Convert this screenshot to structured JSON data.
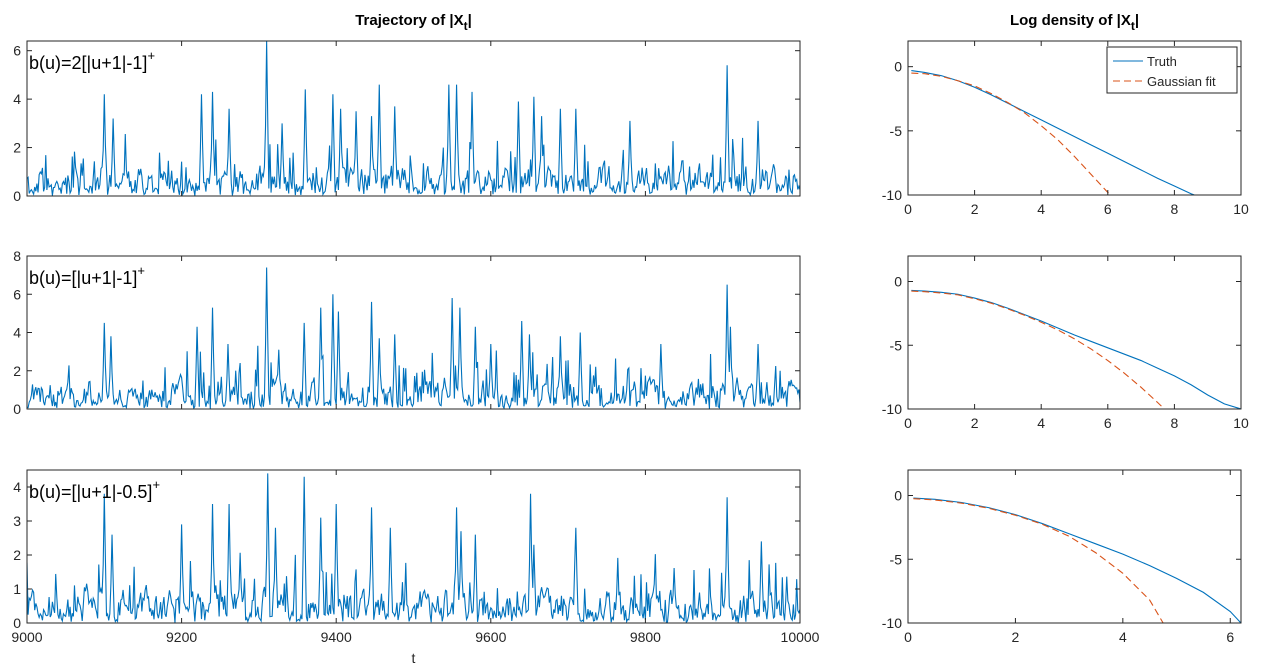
{
  "colors": {
    "truth": "#0072BD",
    "gaussian": "#D95319",
    "axis": "#262626"
  },
  "chart_data": [
    {
      "type": "line",
      "id": "traj1",
      "title": "Trajectory of |X",
      "title_sub": "t",
      "title_end": "|",
      "annotation": "b(u)=2[|u+1|-1]",
      "annotation_sup": "+",
      "xlim": [
        9000,
        10000
      ],
      "ylim": [
        0,
        6.4
      ],
      "xticks": [
        9000,
        9200,
        9400,
        9600,
        9800,
        10000
      ],
      "yticks": [
        0,
        2,
        4,
        6
      ],
      "show_xticklabels": false,
      "xlabel": "",
      "series": [
        {
          "style": "solid",
          "trajectory": {
            "seed": 11,
            "n": 700,
            "scale": 0.55,
            "baseline": 0.15
          },
          "peaks": [
            [
              9100,
              4.2
            ],
            [
              9112,
              3.2
            ],
            [
              9225,
              4.2
            ],
            [
              9240,
              4.3
            ],
            [
              9262,
              3.6
            ],
            [
              9310,
              6.4
            ],
            [
              9330,
              3.0
            ],
            [
              9360,
              4.4
            ],
            [
              9395,
              4.2
            ],
            [
              9405,
              3.6
            ],
            [
              9425,
              3.5
            ],
            [
              9445,
              3.3
            ],
            [
              9455,
              4.6
            ],
            [
              9475,
              3.7
            ],
            [
              9545,
              4.6
            ],
            [
              9555,
              4.6
            ],
            [
              9575,
              4.3
            ],
            [
              9635,
              3.9
            ],
            [
              9655,
              4.1
            ],
            [
              9665,
              3.3
            ],
            [
              9690,
              3.6
            ],
            [
              9710,
              3.6
            ],
            [
              9780,
              3.1
            ],
            [
              9905,
              5.4
            ],
            [
              9945,
              3.1
            ]
          ]
        }
      ]
    },
    {
      "type": "line",
      "id": "traj2",
      "annotation": "b(u)=[|u+1|-1]",
      "annotation_sup": "+",
      "xlim": [
        9000,
        10000
      ],
      "ylim": [
        0,
        8
      ],
      "xticks": [
        9000,
        9200,
        9400,
        9600,
        9800,
        10000
      ],
      "yticks": [
        0,
        2,
        4,
        6,
        8
      ],
      "show_xticklabels": false,
      "xlabel": "",
      "series": [
        {
          "style": "solid",
          "trajectory": {
            "seed": 23,
            "n": 700,
            "scale": 0.65,
            "baseline": 0.15
          },
          "peaks": [
            [
              9100,
              4.5
            ],
            [
              9108,
              3.8
            ],
            [
              9220,
              4.3
            ],
            [
              9240,
              5.3
            ],
            [
              9260,
              3.4
            ],
            [
              9310,
              7.4
            ],
            [
              9325,
              3.1
            ],
            [
              9358,
              4.5
            ],
            [
              9380,
              5.3
            ],
            [
              9395,
              6.0
            ],
            [
              9403,
              5.1
            ],
            [
              9445,
              5.6
            ],
            [
              9455,
              3.7
            ],
            [
              9475,
              3.9
            ],
            [
              9550,
              5.8
            ],
            [
              9560,
              5.3
            ],
            [
              9580,
              4.3
            ],
            [
              9600,
              3.4
            ],
            [
              9640,
              4.6
            ],
            [
              9650,
              3.9
            ],
            [
              9690,
              3.8
            ],
            [
              9715,
              4.0
            ],
            [
              9820,
              3.4
            ],
            [
              9905,
              6.5
            ],
            [
              9910,
              4.3
            ],
            [
              9945,
              3.4
            ]
          ]
        }
      ]
    },
    {
      "type": "line",
      "id": "traj3",
      "annotation": "b(u)=[|u+1|-0.5]",
      "annotation_sup": "+",
      "xlim": [
        9000,
        10000
      ],
      "ylim": [
        0,
        4.5
      ],
      "xticks": [
        9000,
        9200,
        9400,
        9600,
        9800,
        10000
      ],
      "yticks": [
        0,
        1,
        2,
        3,
        4
      ],
      "show_xticklabels": true,
      "xlabel": "t",
      "series": [
        {
          "style": "solid",
          "trajectory": {
            "seed": 37,
            "n": 700,
            "scale": 0.42,
            "baseline": 0.1
          },
          "peaks": [
            [
              9100,
              3.8
            ],
            [
              9110,
              2.6
            ],
            [
              9200,
              2.9
            ],
            [
              9240,
              3.5
            ],
            [
              9262,
              3.5
            ],
            [
              9312,
              4.4
            ],
            [
              9322,
              2.8
            ],
            [
              9358,
              4.3
            ],
            [
              9380,
              3.1
            ],
            [
              9400,
              3.5
            ],
            [
              9445,
              3.4
            ],
            [
              9470,
              2.8
            ],
            [
              9555,
              3.4
            ],
            [
              9562,
              2.7
            ],
            [
              9580,
              2.6
            ],
            [
              9652,
              3.8
            ],
            [
              9655,
              2.3
            ],
            [
              9710,
              2.8
            ],
            [
              9905,
              3.7
            ],
            [
              9950,
              2.4
            ]
          ]
        }
      ]
    },
    {
      "type": "line",
      "id": "dens1",
      "title": "Log density of |X",
      "title_sub": "t",
      "title_end": "|",
      "xlim": [
        0,
        10
      ],
      "ylim": [
        -10,
        2
      ],
      "xticks": [
        0,
        2,
        4,
        6,
        8,
        10
      ],
      "yticks": [
        -10,
        -5,
        0
      ],
      "legend": [
        "Truth",
        "Gaussian fit"
      ],
      "legend_location": "top-right",
      "series": [
        {
          "name": "Truth",
          "style": "solid",
          "x": [
            0.1,
            0.5,
            1,
            1.5,
            2,
            2.5,
            3,
            3.5,
            4,
            4.5,
            5,
            5.5,
            6,
            6.5,
            7,
            7.5,
            8,
            8.5,
            8.6
          ],
          "y": [
            -0.3,
            -0.45,
            -0.7,
            -1.1,
            -1.6,
            -2.2,
            -2.85,
            -3.5,
            -4.15,
            -4.8,
            -5.45,
            -6.1,
            -6.75,
            -7.4,
            -8.05,
            -8.7,
            -9.3,
            -9.9,
            -10
          ]
        },
        {
          "name": "Gaussian fit",
          "style": "dashed",
          "x": [
            0.1,
            0.5,
            1,
            1.5,
            2,
            2.5,
            3,
            3.5,
            4,
            4.5,
            5,
            5.5,
            6,
            6.1
          ],
          "y": [
            -0.5,
            -0.55,
            -0.75,
            -1.1,
            -1.5,
            -2.1,
            -2.8,
            -3.6,
            -4.6,
            -5.7,
            -7.0,
            -8.4,
            -9.8,
            -10
          ]
        }
      ]
    },
    {
      "type": "line",
      "id": "dens2",
      "xlim": [
        0,
        10
      ],
      "ylim": [
        -10,
        2
      ],
      "xticks": [
        0,
        2,
        4,
        6,
        8,
        10
      ],
      "yticks": [
        -10,
        -5,
        0
      ],
      "series": [
        {
          "name": "Truth",
          "style": "solid",
          "x": [
            0.1,
            0.5,
            1,
            1.5,
            2,
            2.5,
            3,
            3.5,
            4,
            4.5,
            5,
            5.5,
            6,
            6.5,
            7,
            7.5,
            8,
            8.5,
            9,
            9.5,
            10
          ],
          "y": [
            -0.7,
            -0.75,
            -0.85,
            -1.0,
            -1.3,
            -1.65,
            -2.1,
            -2.6,
            -3.1,
            -3.65,
            -4.2,
            -4.7,
            -5.2,
            -5.7,
            -6.2,
            -6.8,
            -7.4,
            -8.1,
            -8.9,
            -9.6,
            -10
          ]
        },
        {
          "name": "Gaussian fit",
          "style": "dashed",
          "x": [
            0.1,
            0.5,
            1,
            1.5,
            2,
            2.5,
            3,
            3.5,
            4,
            4.5,
            5,
            5.5,
            6,
            6.5,
            7,
            7.5,
            7.7
          ],
          "y": [
            -0.75,
            -0.8,
            -0.9,
            -1.05,
            -1.35,
            -1.7,
            -2.15,
            -2.65,
            -3.2,
            -3.8,
            -4.5,
            -5.3,
            -6.2,
            -7.2,
            -8.3,
            -9.5,
            -10
          ]
        }
      ]
    },
    {
      "type": "line",
      "id": "dens3",
      "xlim": [
        0,
        6.2
      ],
      "ylim": [
        -10,
        2
      ],
      "xticks": [
        0,
        2,
        4,
        6
      ],
      "yticks": [
        -10,
        -5,
        0
      ],
      "series": [
        {
          "name": "Truth",
          "style": "solid",
          "x": [
            0.1,
            0.5,
            1,
            1.5,
            2,
            2.5,
            3,
            3.5,
            4,
            4.5,
            5,
            5.5,
            6,
            6.2
          ],
          "y": [
            -0.2,
            -0.3,
            -0.55,
            -0.95,
            -1.5,
            -2.2,
            -3.0,
            -3.8,
            -4.6,
            -5.5,
            -6.5,
            -7.6,
            -9.1,
            -10
          ]
        },
        {
          "name": "Gaussian fit",
          "style": "dashed",
          "x": [
            0.1,
            0.5,
            1,
            1.5,
            2,
            2.5,
            3,
            3.5,
            4,
            4.5,
            4.75
          ],
          "y": [
            -0.25,
            -0.35,
            -0.6,
            -1.0,
            -1.55,
            -2.25,
            -3.2,
            -4.5,
            -6.1,
            -8.2,
            -10
          ]
        }
      ]
    }
  ]
}
